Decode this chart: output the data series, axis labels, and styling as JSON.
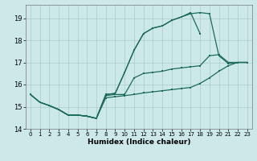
{
  "xlabel": "Humidex (Indice chaleur)",
  "bg_color": "#cce8e8",
  "grid_color": "#aacccc",
  "line_color": "#1a6b5a",
  "xlim": [
    -0.5,
    23.5
  ],
  "ylim": [
    14.0,
    19.6
  ],
  "yticks": [
    14,
    15,
    16,
    17,
    18,
    19
  ],
  "xticks": [
    0,
    1,
    2,
    3,
    4,
    5,
    6,
    7,
    8,
    9,
    10,
    11,
    12,
    13,
    14,
    15,
    16,
    17,
    18,
    19,
    20,
    21,
    22,
    23
  ],
  "line_upper_x": [
    0,
    1,
    2,
    3,
    4,
    5,
    6,
    7,
    8,
    9,
    10,
    11,
    12,
    13,
    14,
    15,
    16,
    17,
    18,
    19,
    20,
    21,
    22,
    23
  ],
  "line_upper_y": [
    15.55,
    15.2,
    15.05,
    14.87,
    14.62,
    14.62,
    14.57,
    14.47,
    15.55,
    15.6,
    16.55,
    17.55,
    18.3,
    18.55,
    18.65,
    18.9,
    19.05,
    19.2,
    19.25,
    19.2,
    17.3,
    16.95,
    17.0,
    17.0
  ],
  "line_upper2_x": [
    2,
    3,
    4,
    5,
    6,
    7,
    8,
    9,
    10,
    11,
    12,
    13,
    14,
    15,
    16,
    17,
    18
  ],
  "line_upper2_y": [
    15.05,
    14.87,
    14.62,
    14.62,
    14.57,
    14.47,
    15.55,
    15.6,
    16.55,
    17.55,
    18.3,
    18.55,
    18.65,
    18.9,
    19.05,
    19.25,
    18.3
  ],
  "line_mid_x": [
    0,
    1,
    2,
    3,
    4,
    5,
    6,
    7,
    8,
    9,
    10,
    11,
    12,
    13,
    14,
    15,
    16,
    17,
    18,
    19,
    20,
    21,
    22,
    23
  ],
  "line_mid_y": [
    15.55,
    15.2,
    15.05,
    14.87,
    14.62,
    14.62,
    14.57,
    14.47,
    15.5,
    15.55,
    15.55,
    16.3,
    16.5,
    16.55,
    16.6,
    16.7,
    16.75,
    16.8,
    16.85,
    17.3,
    17.35,
    17.0,
    17.0,
    17.0
  ],
  "line_low_x": [
    0,
    1,
    2,
    3,
    4,
    5,
    6,
    7,
    8,
    9,
    10,
    11,
    12,
    13,
    14,
    15,
    16,
    17,
    18,
    19,
    20,
    21,
    22,
    23
  ],
  "line_low_y": [
    15.55,
    15.2,
    15.05,
    14.87,
    14.62,
    14.62,
    14.57,
    14.47,
    15.4,
    15.45,
    15.5,
    15.55,
    15.62,
    15.67,
    15.72,
    15.77,
    15.82,
    15.87,
    16.05,
    16.3,
    16.6,
    16.85,
    17.0,
    17.0
  ]
}
